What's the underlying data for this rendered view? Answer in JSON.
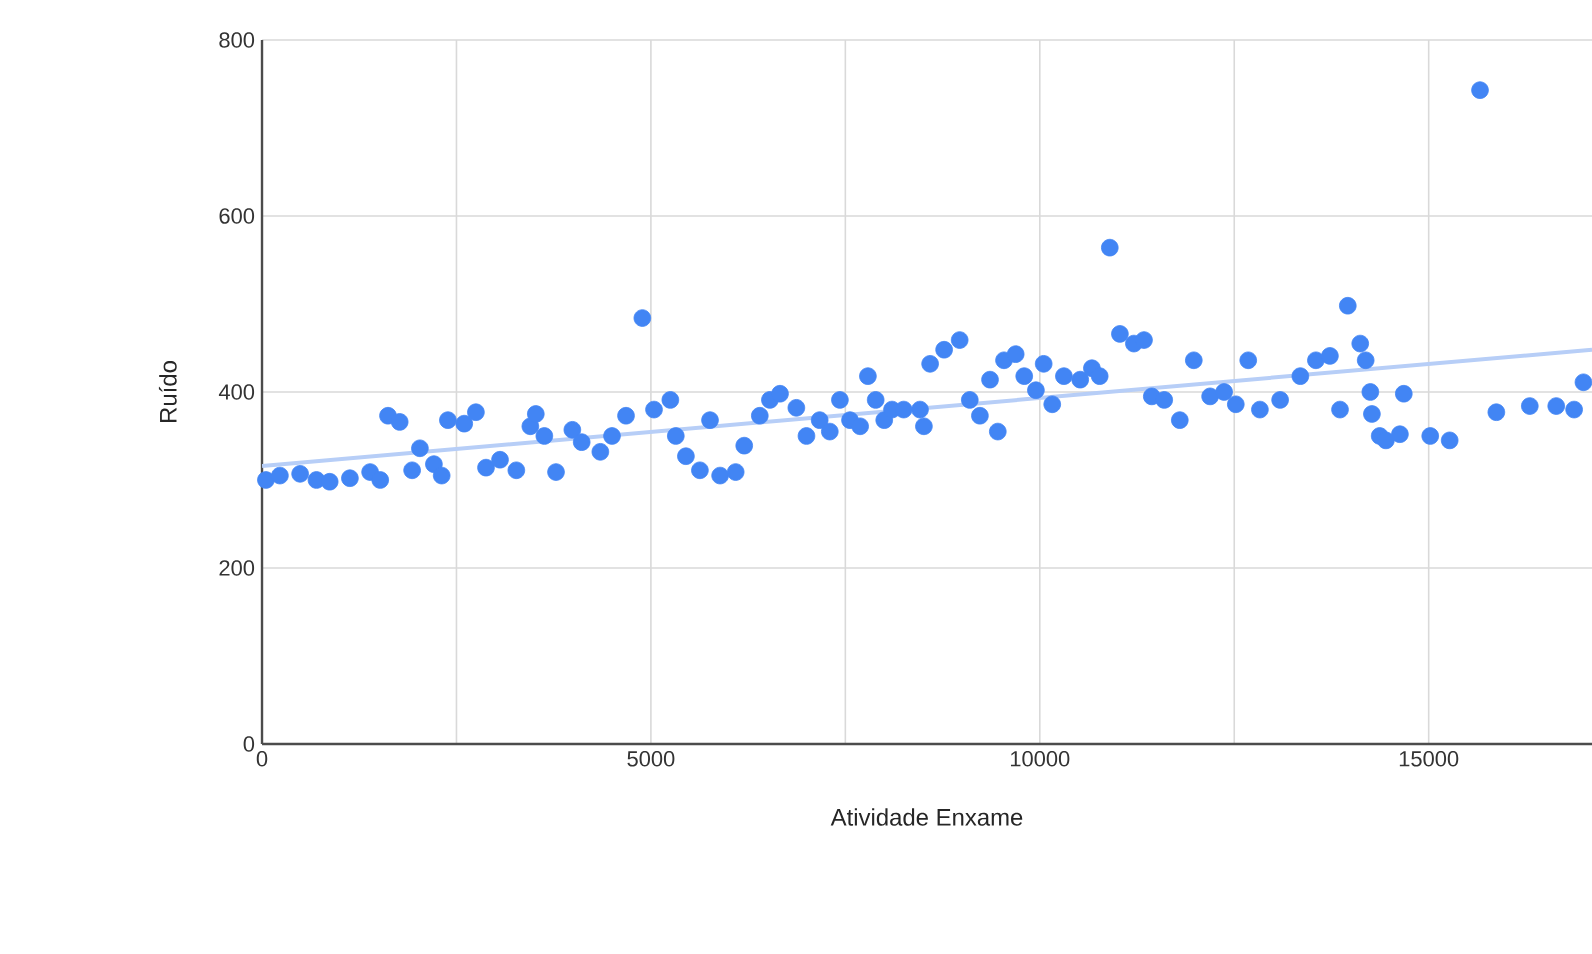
{
  "chart_data": {
    "type": "scatter",
    "xlabel": "Atividade Enxame",
    "ylabel": "Ruído",
    "xlim": [
      0,
      17100
    ],
    "ylim": [
      0,
      800
    ],
    "xticks": [
      0,
      {
        "value": 2500,
        "label": null
      },
      5000,
      {
        "value": 7500,
        "label": null
      },
      10000,
      {
        "value": 12500,
        "label": null
      },
      15000
    ],
    "yticks": [
      0,
      200,
      400,
      600,
      800
    ],
    "grid": true,
    "series": [
      {
        "marker": "circle",
        "color": "#4285f4",
        "x": [
          50,
          230,
          490,
          700,
          870,
          1130,
          1390,
          1520,
          1620,
          1770,
          1930,
          2030,
          2210,
          2310,
          2390,
          2600,
          2750,
          2880,
          3060,
          3270,
          3450,
          3520,
          3630,
          3780,
          3990,
          4110,
          4350,
          4500,
          4680,
          4890,
          5040,
          5250,
          5320,
          5450,
          5630,
          5760,
          5890,
          6090,
          6200,
          6400,
          6530,
          6660,
          6870,
          7000,
          7170,
          7300,
          7430,
          7560,
          7690,
          7790,
          7890,
          8000,
          8100,
          8250,
          8460,
          8510,
          8590,
          8770,
          8970,
          9100,
          9230,
          9360,
          9460,
          9540,
          9690,
          9800,
          9950,
          10050,
          10160,
          10310,
          10520,
          10670,
          10770,
          10900,
          11030,
          11210,
          11340,
          11440,
          11600,
          11800,
          11980,
          12190,
          12370,
          12520,
          12680,
          12830,
          13090,
          13350,
          13550,
          13730,
          13860,
          13960,
          14120,
          14190,
          14250,
          14270,
          14370,
          14450,
          14630,
          14680,
          15020,
          15270,
          15660,
          15870,
          16300,
          16640,
          16870,
          16990
        ],
        "values": [
          300,
          305,
          307,
          300,
          298,
          302,
          309,
          300,
          373,
          366,
          311,
          336,
          318,
          305,
          368,
          364,
          377,
          314,
          323,
          311,
          361,
          375,
          350,
          309,
          357,
          343,
          332,
          350,
          373,
          484,
          380,
          391,
          350,
          327,
          311,
          368,
          305,
          309,
          339,
          373,
          391,
          398,
          382,
          350,
          368,
          355,
          391,
          368,
          361,
          418,
          391,
          368,
          380,
          380,
          380,
          361,
          432,
          448,
          459,
          391,
          373,
          414,
          355,
          436,
          443,
          418,
          402,
          432,
          386,
          418,
          414,
          427,
          418,
          564,
          466,
          455,
          459,
          395,
          391,
          368,
          436,
          395,
          400,
          386,
          436,
          380,
          391,
          418,
          436,
          441,
          380,
          498,
          455,
          436,
          400,
          375,
          350,
          345,
          352,
          398,
          350,
          345,
          743,
          377,
          384,
          384,
          380,
          411
        ]
      },
      {
        "type": "line",
        "marker": "none",
        "color": "#b7cef7",
        "x": [
          0,
          17100
        ],
        "values": [
          316,
          448
        ]
      }
    ]
  }
}
